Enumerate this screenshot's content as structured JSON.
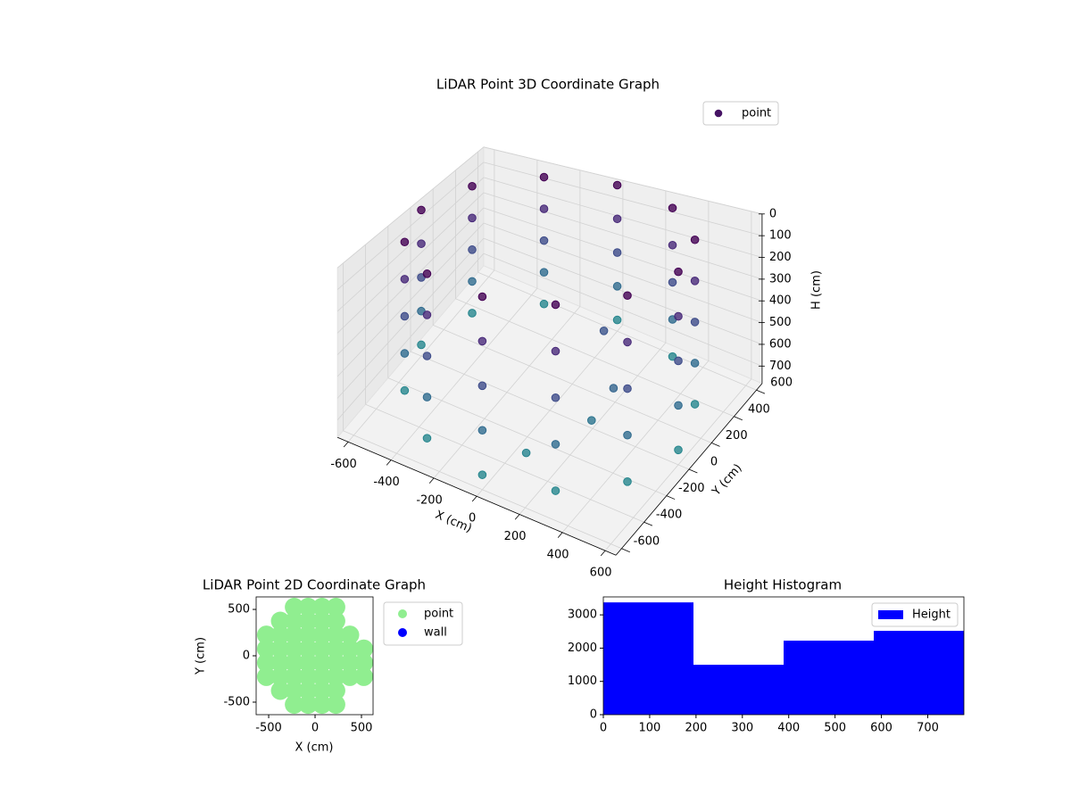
{
  "chart_data": [
    {
      "type": "scatter3d",
      "title": "LiDAR Point 3D Coordinate Graph",
      "xlabel": "X (cm)",
      "ylabel": "Y (cm)",
      "zlabel": "H (cm)",
      "xlim": [
        -650,
        650
      ],
      "ylim": [
        -650,
        650
      ],
      "zlim": [
        0,
        780
      ],
      "z_inverted": true,
      "xticks": [
        -600,
        -400,
        -200,
        0,
        200,
        400,
        600
      ],
      "yticks": [
        -600,
        -400,
        -200,
        0,
        200,
        400,
        600
      ],
      "zticks": [
        0,
        100,
        200,
        300,
        400,
        500,
        600,
        700
      ],
      "colormap": "viridis",
      "grid": true,
      "legend": "upper right",
      "series": [
        {
          "name": "point",
          "x": [
            -300,
            -300,
            -300,
            -300,
            -300,
            -520,
            -520,
            -520,
            -520,
            -520,
            0,
            0,
            0,
            0,
            0,
            -600,
            -600,
            -600,
            -600,
            -600,
            300,
            300,
            300,
            300,
            300,
            -520,
            -520,
            -520,
            -520,
            -520,
            520,
            520,
            520,
            520,
            520,
            -300,
            -300,
            -300,
            -300,
            -300,
            600,
            600,
            600,
            600,
            600,
            200,
            300,
            350,
            100,
            0,
            0,
            0,
            0,
            0,
            300,
            300,
            300,
            300,
            300,
            520,
            520,
            520,
            520,
            520
          ],
          "y": [
            520,
            520,
            520,
            520,
            520,
            300,
            300,
            300,
            300,
            300,
            600,
            600,
            600,
            600,
            600,
            0,
            0,
            0,
            0,
            0,
            520,
            520,
            520,
            520,
            520,
            -300,
            -300,
            -300,
            -300,
            -300,
            300,
            300,
            300,
            300,
            300,
            -520,
            -520,
            -520,
            -520,
            -520,
            0,
            0,
            0,
            0,
            0,
            100,
            -200,
            -100,
            -400,
            -600,
            -600,
            -600,
            -600,
            -600,
            -520,
            -520,
            -520,
            -520,
            -520,
            -300,
            -300,
            -300,
            -300,
            -300
          ],
          "z": [
            0,
            180,
            360,
            540,
            720,
            0,
            180,
            360,
            540,
            720,
            0,
            180,
            360,
            540,
            720,
            0,
            180,
            360,
            540,
            720,
            0,
            180,
            360,
            540,
            720,
            0,
            180,
            360,
            540,
            720,
            0,
            180,
            360,
            540,
            720,
            0,
            180,
            360,
            540,
            720,
            0,
            180,
            360,
            540,
            720,
            400,
            600,
            500,
            700,
            0,
            180,
            360,
            540,
            720,
            0,
            180,
            360,
            540,
            720,
            0,
            180,
            360,
            540,
            720
          ]
        }
      ]
    },
    {
      "type": "scatter",
      "title": "LiDAR Point 2D Coordinate Graph",
      "xlabel": "X (cm)",
      "ylabel": "Y (cm)",
      "xlim": [
        -635,
        625
      ],
      "ylim": [
        -635,
        635
      ],
      "xticks": [
        -500,
        0,
        500
      ],
      "yticks": [
        -500,
        0,
        500
      ],
      "legend": "outside upper right",
      "series": [
        {
          "name": "point",
          "color": "#90ee90",
          "x": [
            -225,
            -75,
            75,
            225,
            -375,
            -225,
            -75,
            75,
            225,
            -525,
            -375,
            -225,
            -75,
            75,
            225,
            375,
            -525,
            -375,
            -225,
            -75,
            75,
            225,
            375,
            525,
            -525,
            -375,
            -225,
            -75,
            75,
            225,
            375,
            525,
            -525,
            -375,
            -225,
            -75,
            75,
            225,
            375,
            525,
            -375,
            -225,
            -75,
            75,
            225,
            -225,
            -75,
            75,
            225
          ],
          "y": [
            525,
            525,
            525,
            525,
            375,
            375,
            375,
            375,
            375,
            225,
            225,
            225,
            225,
            225,
            225,
            225,
            75,
            75,
            75,
            75,
            75,
            75,
            75,
            75,
            -75,
            -75,
            -75,
            -75,
            -75,
            -75,
            -75,
            -75,
            -225,
            -225,
            -225,
            -225,
            -225,
            -225,
            -225,
            -225,
            -375,
            -375,
            -375,
            -375,
            -375,
            -525,
            -525,
            -525,
            -525
          ]
        },
        {
          "name": "wall",
          "color": "#0000ff",
          "x": [],
          "y": []
        }
      ]
    },
    {
      "type": "histogram",
      "title": "Height Histogram",
      "label": "Height",
      "color": "#0000ff",
      "bins": [
        0,
        194.5,
        389,
        583.5,
        778
      ],
      "counts": [
        3375,
        1500,
        2225,
        2520
      ],
      "xlim": [
        0,
        778
      ],
      "ylim": [
        0,
        3540
      ],
      "xticks": [
        0,
        100,
        200,
        300,
        400,
        500,
        600,
        700
      ],
      "yticks": [
        0,
        1000,
        2000,
        3000
      ],
      "legend": "upper right"
    }
  ]
}
